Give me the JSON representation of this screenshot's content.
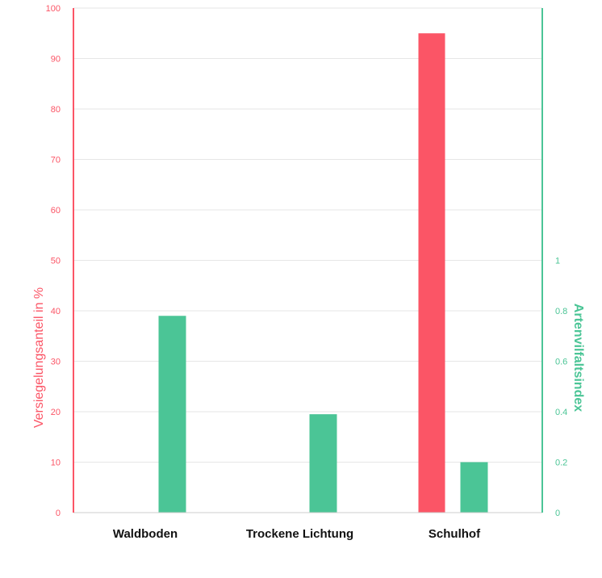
{
  "chart_data": {
    "type": "bar",
    "categories": [
      "Waldboden",
      "Trockene Lichtung",
      "Schulhof"
    ],
    "series": [
      {
        "axis": "left",
        "color": "#fb5566",
        "values": [
          0,
          0,
          95
        ]
      },
      {
        "axis": "right",
        "color": "#4bc596",
        "values": [
          0.78,
          0.39,
          0.2
        ]
      }
    ],
    "y_left": {
      "label": "Versiegelungsanteil in %",
      "ylim": [
        0,
        100
      ],
      "ticks": [
        0,
        10,
        20,
        30,
        40,
        50,
        60,
        70,
        80,
        90,
        100
      ],
      "color": "#fb5566"
    },
    "y_right": {
      "label": "Artenvilfaltsindex",
      "ylim": [
        0,
        2
      ],
      "ticks": [
        0,
        0.2,
        0.4,
        0.6,
        0.8,
        1
      ],
      "color": "#4bc596"
    },
    "grid": true,
    "category_label_color": "#111111",
    "gridline_color": "#e6e6e6",
    "baseline_color": "#cccccc"
  }
}
